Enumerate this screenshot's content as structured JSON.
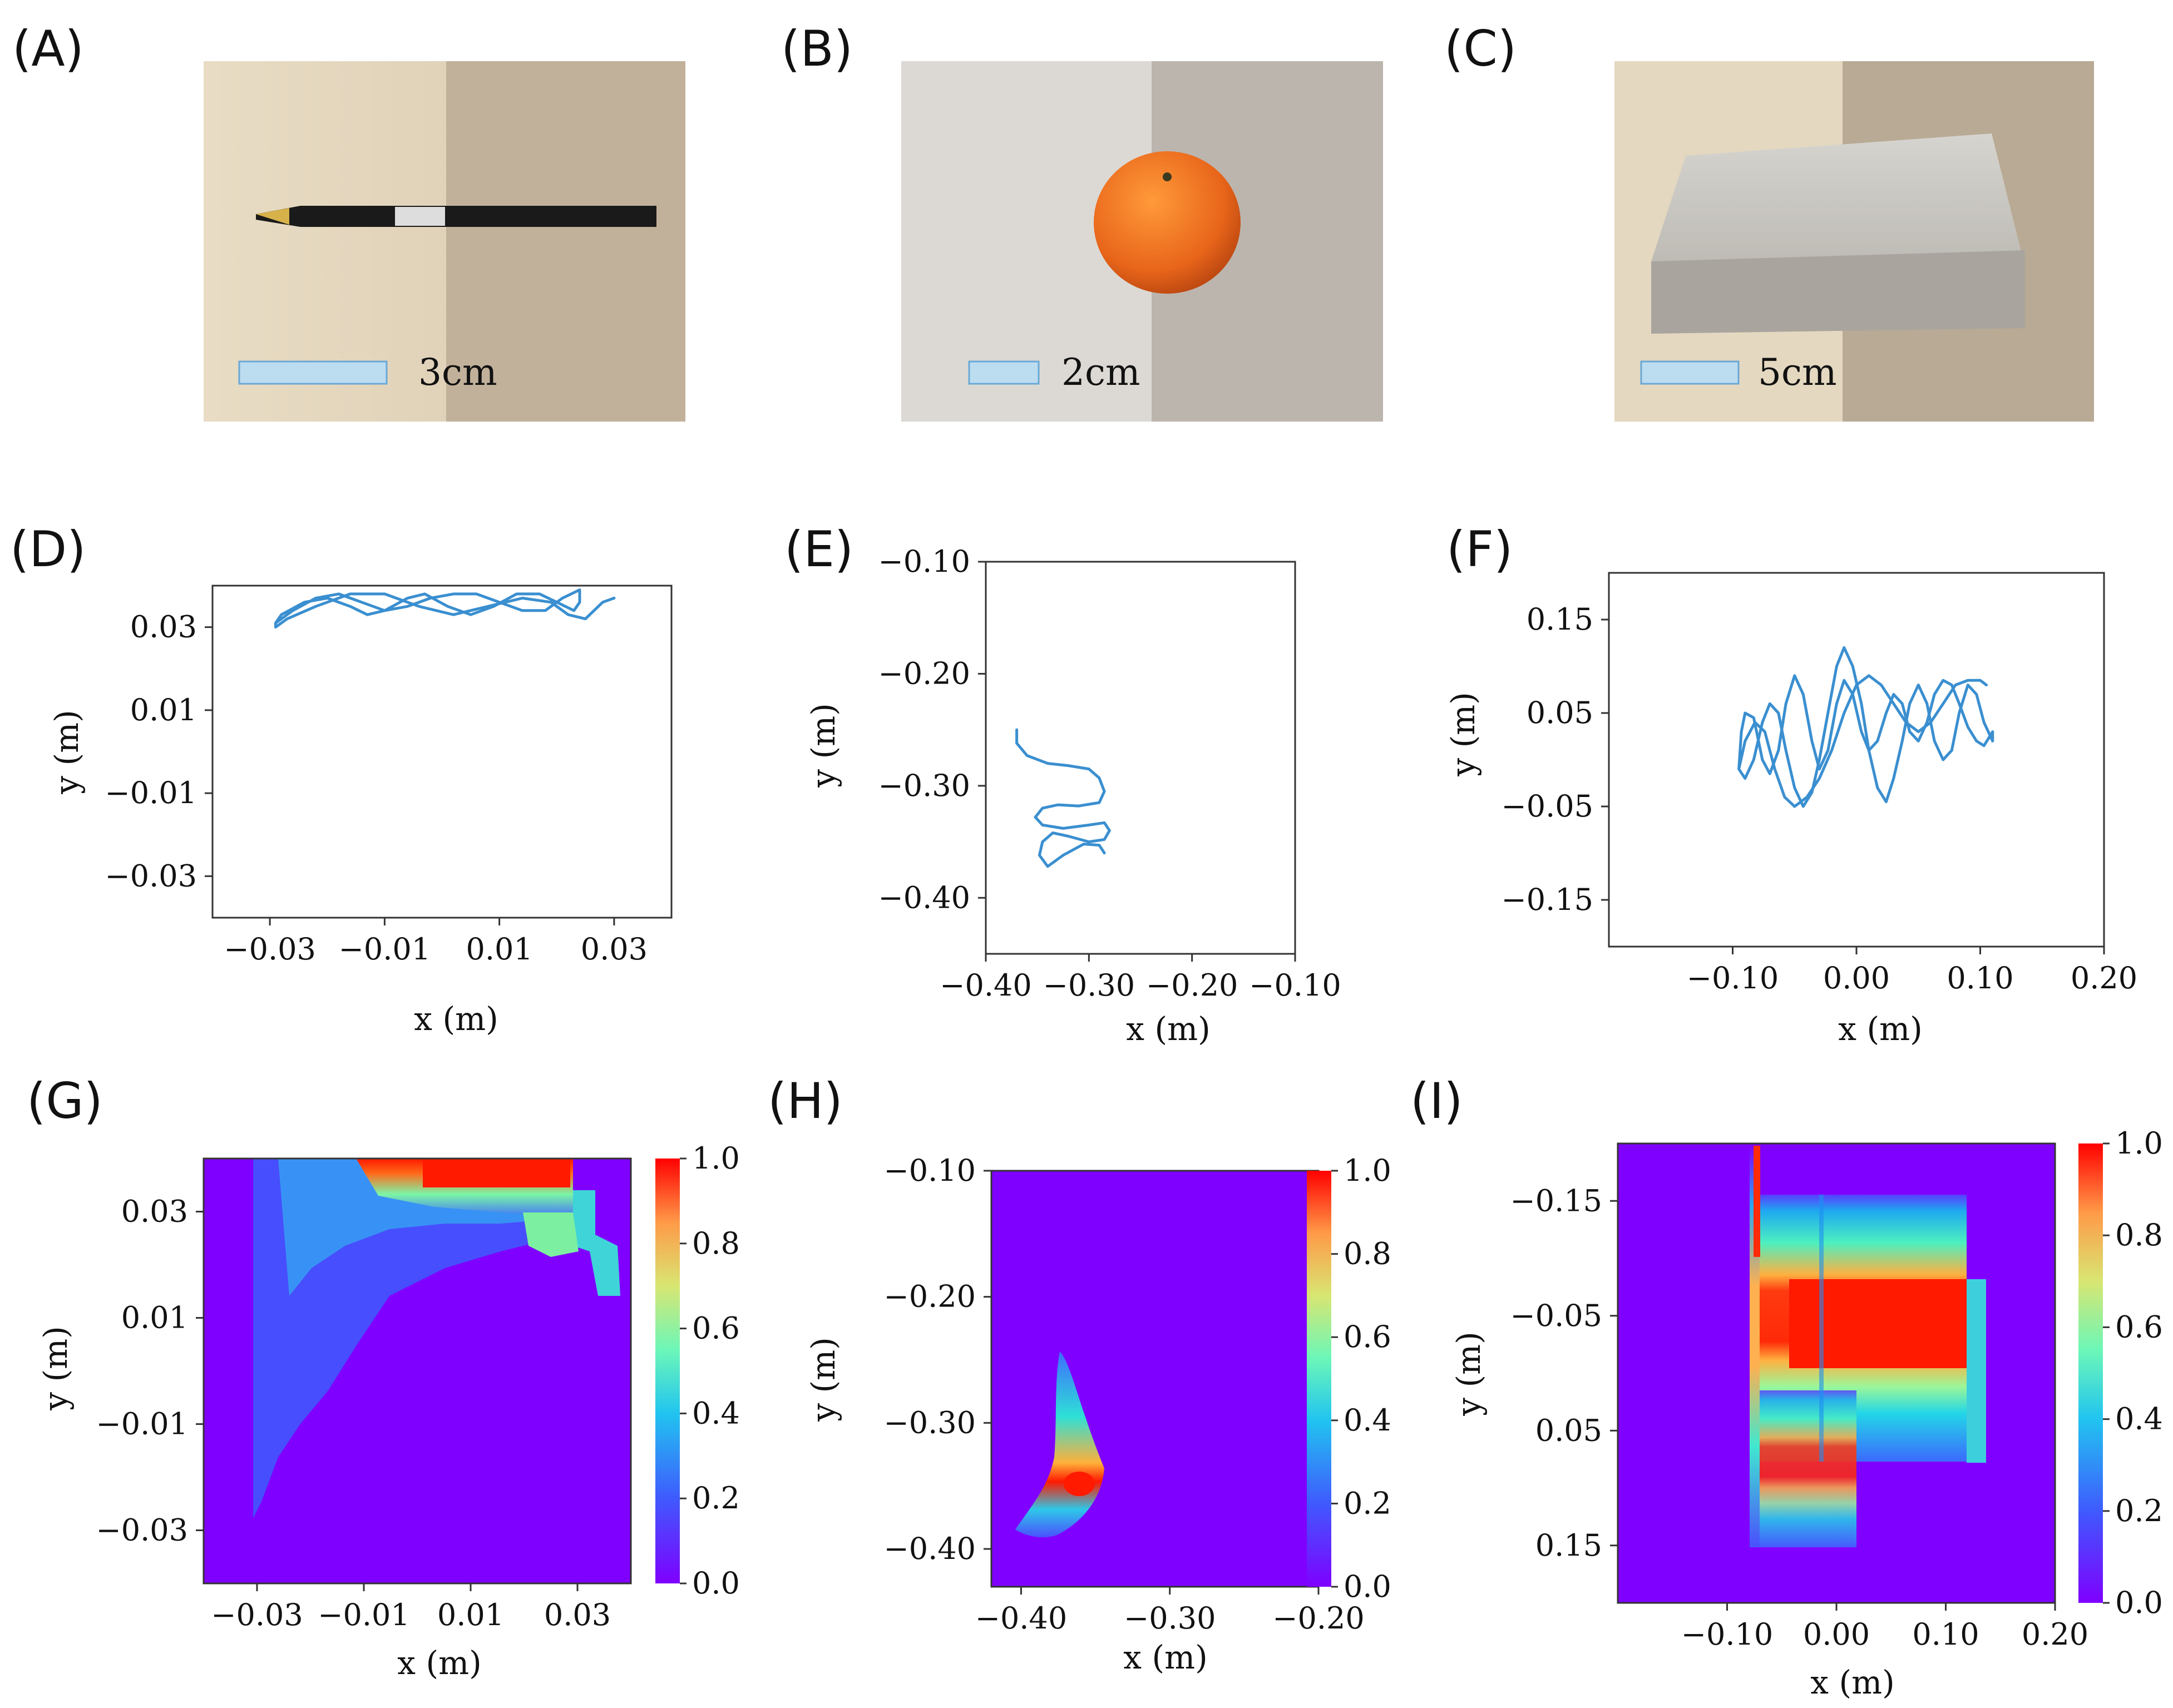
{
  "colors": {
    "trajectory": "#3a8fd0",
    "heat_low": "#7f00ff",
    "heat_high": "#ff1a00",
    "scale_bar": "#bcdcf0"
  },
  "panels": {
    "A": {
      "label": "(A)",
      "scale": "3cm"
    },
    "B": {
      "label": "(B)",
      "scale": "2cm"
    },
    "C": {
      "label": "(C)",
      "scale": "5cm"
    },
    "D": {
      "label": "(D)"
    },
    "E": {
      "label": "(E)"
    },
    "F": {
      "label": "(F)"
    },
    "G": {
      "label": "(G)"
    },
    "H": {
      "label": "(H)"
    },
    "I": {
      "label": "(I)"
    }
  },
  "chart_data": [
    {
      "id": "D",
      "type": "line",
      "title": "",
      "xlabel": "x (m)",
      "ylabel": "y (m)",
      "xlim": [
        -0.04,
        0.04
      ],
      "ylim": [
        -0.04,
        0.04
      ],
      "xticks": [
        "−0.03",
        "−0.01",
        "0.01",
        "0.03"
      ],
      "yticks": [
        "0.03",
        "0.01",
        "−0.01",
        "−0.03"
      ],
      "x": [
        -0.029,
        -0.028,
        -0.024,
        -0.02,
        -0.016,
        -0.013,
        -0.01,
        -0.006,
        -0.003,
        0.001,
        0.005,
        0.009,
        0.013,
        0.017,
        0.02,
        0.023,
        0.024,
        0.024,
        0.021,
        0.018,
        0.014,
        0.01,
        0.006,
        0.002,
        -0.002,
        -0.006,
        -0.01,
        -0.014,
        -0.018,
        -0.022,
        -0.026,
        -0.029,
        -0.029,
        -0.027,
        -0.022,
        -0.016,
        -0.01,
        -0.004,
        0.002,
        0.008,
        0.014,
        0.019,
        0.022,
        0.025,
        0.028,
        0.03
      ],
      "y": [
        0.031,
        0.033,
        0.036,
        0.037,
        0.035,
        0.033,
        0.034,
        0.037,
        0.038,
        0.035,
        0.033,
        0.035,
        0.038,
        0.038,
        0.036,
        0.034,
        0.036,
        0.039,
        0.037,
        0.034,
        0.034,
        0.036,
        0.038,
        0.038,
        0.037,
        0.035,
        0.034,
        0.036,
        0.038,
        0.037,
        0.034,
        0.031,
        0.03,
        0.032,
        0.035,
        0.038,
        0.038,
        0.035,
        0.033,
        0.035,
        0.037,
        0.036,
        0.033,
        0.032,
        0.036,
        0.037
      ]
    },
    {
      "id": "E",
      "type": "line",
      "title": "",
      "xlabel": "x (m)",
      "ylabel": "y (m)",
      "xlim": [
        -0.4,
        -0.1
      ],
      "ylim": [
        -0.45,
        -0.1
      ],
      "xticks": [
        "−0.40",
        "−0.30",
        "−0.20",
        "−0.10"
      ],
      "yticks": [
        "−0.10",
        "−0.20",
        "−0.30",
        "−0.40"
      ],
      "x": [
        -0.37,
        -0.37,
        -0.36,
        -0.34,
        -0.32,
        -0.3,
        -0.29,
        -0.285,
        -0.29,
        -0.31,
        -0.33,
        -0.345,
        -0.352,
        -0.345,
        -0.325,
        -0.3,
        -0.285,
        -0.28,
        -0.285,
        -0.3,
        -0.32,
        -0.335,
        -0.345,
        -0.348,
        -0.34,
        -0.325,
        -0.305,
        -0.29,
        -0.285
      ],
      "y": [
        -0.25,
        -0.262,
        -0.273,
        -0.28,
        -0.282,
        -0.285,
        -0.293,
        -0.305,
        -0.315,
        -0.318,
        -0.317,
        -0.32,
        -0.328,
        -0.335,
        -0.338,
        -0.335,
        -0.333,
        -0.34,
        -0.348,
        -0.35,
        -0.345,
        -0.342,
        -0.35,
        -0.362,
        -0.372,
        -0.362,
        -0.352,
        -0.353,
        -0.36
      ]
    },
    {
      "id": "F",
      "type": "line",
      "title": "",
      "xlabel": "x (m)",
      "ylabel": "y (m)",
      "xlim": [
        -0.2,
        0.2
      ],
      "ylim": [
        -0.2,
        0.2
      ],
      "xticks": [
        "−0.10",
        "0.00",
        "0.10",
        "0.20"
      ],
      "yticks": [
        "0.15",
        "0.05",
        "−0.05",
        "−0.15"
      ],
      "x": [
        -0.095,
        -0.093,
        -0.09,
        -0.083,
        -0.076,
        -0.07,
        -0.063,
        -0.057,
        -0.05,
        -0.043,
        -0.036,
        -0.03,
        -0.023,
        -0.016,
        -0.01,
        -0.003,
        0.004,
        0.01,
        0.017,
        0.024,
        0.03,
        0.037,
        0.043,
        0.05,
        0.057,
        0.063,
        0.07,
        0.077,
        0.083,
        0.09,
        0.097,
        0.103,
        0.11,
        0.11,
        0.103,
        0.097,
        0.09,
        0.083,
        0.077,
        0.07,
        0.063,
        0.057,
        0.05,
        0.043,
        0.037,
        0.03,
        0.024,
        0.017,
        0.01,
        0.004,
        -0.003,
        -0.01,
        -0.016,
        -0.023,
        -0.03,
        -0.036,
        -0.043,
        -0.05,
        -0.057,
        -0.063,
        -0.07,
        -0.076,
        -0.083,
        -0.09,
        -0.095,
        -0.09,
        -0.082,
        -0.074,
        -0.066,
        -0.058,
        -0.05,
        -0.04,
        -0.03,
        -0.02,
        -0.01,
        0.0,
        0.01,
        0.02,
        0.03,
        0.04,
        0.05,
        0.06,
        0.07,
        0.08,
        0.09,
        0.1,
        0.105
      ],
      "y": [
        -0.01,
        0.03,
        0.05,
        0.045,
        0.0,
        -0.015,
        0.01,
        0.06,
        0.09,
        0.07,
        0.02,
        -0.01,
        0.01,
        0.06,
        0.085,
        0.07,
        0.03,
        0.01,
        0.02,
        0.05,
        0.07,
        0.06,
        0.03,
        0.02,
        0.04,
        0.07,
        0.085,
        0.08,
        0.06,
        0.035,
        0.02,
        0.015,
        0.03,
        0.02,
        0.04,
        0.07,
        0.08,
        0.05,
        0.01,
        0.0,
        0.02,
        0.06,
        0.08,
        0.06,
        0.02,
        -0.02,
        -0.045,
        -0.03,
        0.01,
        0.06,
        0.1,
        0.12,
        0.1,
        0.05,
        0.0,
        -0.035,
        -0.05,
        -0.03,
        0.01,
        0.05,
        0.06,
        0.04,
        0.0,
        -0.02,
        -0.01,
        0.02,
        0.04,
        0.03,
        -0.01,
        -0.04,
        -0.05,
        -0.04,
        -0.02,
        0.01,
        0.05,
        0.08,
        0.09,
        0.08,
        0.06,
        0.04,
        0.03,
        0.04,
        0.06,
        0.08,
        0.085,
        0.085,
        0.08
      ]
    },
    {
      "id": "G",
      "type": "heatmap",
      "title": "",
      "xlabel": "x (m)",
      "ylabel": "y (m)",
      "xlim": [
        -0.04,
        0.04
      ],
      "ylim": [
        -0.04,
        0.04
      ],
      "xticks": [
        "−0.03",
        "−0.01",
        "0.01",
        "0.03"
      ],
      "yticks": [
        "0.03",
        "0.01",
        "−0.01",
        "−0.03"
      ],
      "colorbar": {
        "range": [
          0.0,
          1.0
        ],
        "ticks": [
          "0.0",
          "0.2",
          "0.4",
          "0.6",
          "0.8",
          "1.0"
        ]
      }
    },
    {
      "id": "H",
      "type": "heatmap",
      "title": "",
      "xlabel": "x (m)",
      "ylabel": "y (m)",
      "xlim": [
        -0.42,
        -0.2
      ],
      "ylim": [
        -0.43,
        -0.1
      ],
      "xticks": [
        "−0.40",
        "−0.30",
        "−0.20"
      ],
      "yticks": [
        "−0.10",
        "−0.20",
        "−0.30",
        "−0.40"
      ],
      "colorbar": {
        "range": [
          0.0,
          1.0
        ],
        "ticks": [
          "0.0",
          "0.2",
          "0.4",
          "0.6",
          "0.8",
          "1.0"
        ]
      }
    },
    {
      "id": "I",
      "type": "heatmap",
      "title": "",
      "xlabel": "x (m)",
      "ylabel": "y (m)",
      "xlim": [
        -0.2,
        0.2
      ],
      "ylim": [
        -0.2,
        0.2
      ],
      "xticks": [
        "−0.10",
        "0.00",
        "0.10",
        "0.20"
      ],
      "yticks": [
        "−0.15",
        "−0.05",
        "0.05",
        "0.15"
      ],
      "colorbar": {
        "range": [
          0.0,
          1.0
        ],
        "ticks": [
          "0.0",
          "0.2",
          "0.4",
          "0.6",
          "0.8",
          "1.0"
        ]
      }
    }
  ]
}
